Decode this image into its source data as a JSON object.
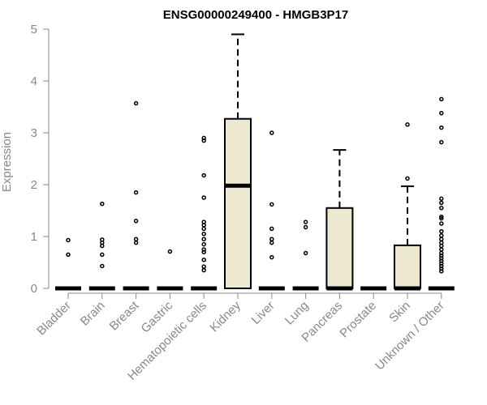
{
  "chart_data": {
    "type": "boxplot",
    "title": "ENSG00000249400 - HMGB3P17",
    "ylabel": "Expression",
    "xlabel": "",
    "ylim": [
      0,
      5
    ],
    "yticks": [
      0,
      1,
      2,
      3,
      4,
      5
    ],
    "grid": false,
    "legend": "none",
    "box_color": "#ede8d0",
    "stroke_color": "#000000",
    "axis_color": "#888888",
    "categories": [
      "Bladder",
      "Brain",
      "Breast",
      "Gastric",
      "Hematopoietic cells",
      "Kidney",
      "Liver",
      "Lung",
      "Pancreas",
      "Prostate",
      "Skin",
      "Unknown / Other"
    ],
    "boxes": [
      {
        "category": "Bladder",
        "q1": 0,
        "median": 0,
        "q3": 0,
        "whisker_low": 0,
        "whisker_high": 0,
        "outliers": [
          0.65,
          0.93
        ]
      },
      {
        "category": "Brain",
        "q1": 0,
        "median": 0,
        "q3": 0,
        "whisker_low": 0,
        "whisker_high": 0,
        "outliers": [
          0.43,
          0.65,
          0.82,
          0.88,
          0.94,
          1.63
        ]
      },
      {
        "category": "Breast",
        "q1": 0,
        "median": 0,
        "q3": 0,
        "whisker_low": 0,
        "whisker_high": 0,
        "outliers": [
          0.88,
          0.95,
          1.3,
          1.85,
          3.57
        ]
      },
      {
        "category": "Gastric",
        "q1": 0,
        "median": 0,
        "q3": 0,
        "whisker_low": 0,
        "whisker_high": 0,
        "outliers": [
          0.71
        ]
      },
      {
        "category": "Hematopoietic cells",
        "q1": 0,
        "median": 0,
        "q3": 0,
        "whisker_low": 0,
        "whisker_high": 0,
        "outliers": [
          0.35,
          0.42,
          0.55,
          0.7,
          0.75,
          0.85,
          0.95,
          1.05,
          1.15,
          1.22,
          1.28,
          1.75,
          2.18,
          2.85,
          2.9
        ]
      },
      {
        "category": "Kidney",
        "q1": 0,
        "median": 1.98,
        "q3": 3.27,
        "whisker_low": 0,
        "whisker_high": 4.9,
        "outliers": []
      },
      {
        "category": "Liver",
        "q1": 0,
        "median": 0,
        "q3": 0,
        "whisker_low": 0,
        "whisker_high": 0,
        "outliers": [
          0.6,
          0.88,
          0.95,
          1.15,
          1.62,
          3.0
        ]
      },
      {
        "category": "Lung",
        "q1": 0,
        "median": 0,
        "q3": 0,
        "whisker_low": 0,
        "whisker_high": 0,
        "outliers": [
          0.68,
          1.18,
          1.28
        ]
      },
      {
        "category": "Pancreas",
        "q1": 0,
        "median": 0,
        "q3": 1.55,
        "whisker_low": 0,
        "whisker_high": 2.67,
        "outliers": []
      },
      {
        "category": "Prostate",
        "q1": 0,
        "median": 0,
        "q3": 0,
        "whisker_low": 0,
        "whisker_high": 0,
        "outliers": []
      },
      {
        "category": "Skin",
        "q1": 0,
        "median": 0,
        "q3": 0.83,
        "whisker_low": 0,
        "whisker_high": 1.97,
        "outliers": [
          2.12,
          3.16
        ]
      },
      {
        "category": "Unknown / Other",
        "q1": 0,
        "median": 0,
        "q3": 0,
        "whisker_low": 0,
        "whisker_high": 0,
        "outliers": [
          0.33,
          0.38,
          0.43,
          0.48,
          0.53,
          0.58,
          0.63,
          0.68,
          0.75,
          0.82,
          0.88,
          0.95,
          1.02,
          1.1,
          1.25,
          1.35,
          1.38,
          1.55,
          1.65,
          1.73,
          2.82,
          3.1,
          3.38,
          3.65
        ]
      }
    ]
  }
}
